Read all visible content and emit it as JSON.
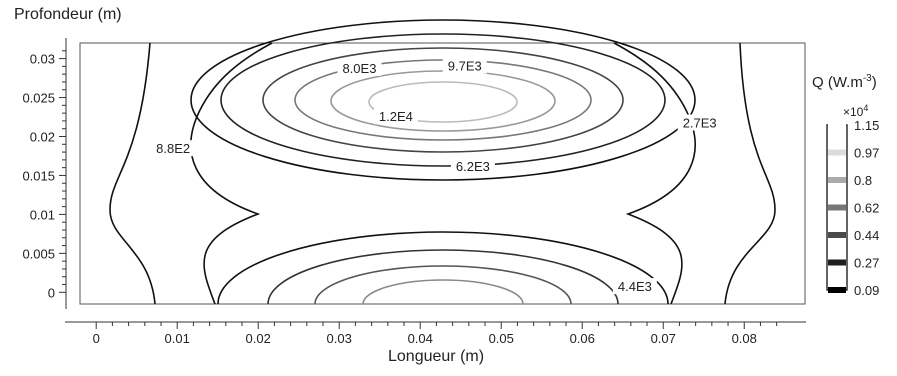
{
  "chart_data": {
    "type": "contour",
    "ylabel": "Profondeur (m)",
    "xlabel": "Longueur (m)",
    "xlim": [
      -0.002,
      0.0875
    ],
    "ylim": [
      -0.0015,
      0.032
    ],
    "x_ticks": [
      "0",
      "0.01",
      "0.02",
      "0.03",
      "0.04",
      "0.05",
      "0.06",
      "0.07",
      "0.08"
    ],
    "x_tick_values": [
      0,
      0.01,
      0.02,
      0.03,
      0.04,
      0.05,
      0.06,
      0.07,
      0.08
    ],
    "y_ticks": [
      "0",
      "0.005",
      "0.01",
      "0.015",
      "0.02",
      "0.025",
      "0.03"
    ],
    "y_tick_values": [
      0,
      0.005,
      0.01,
      0.015,
      0.02,
      0.025,
      0.03
    ],
    "contour_labels": [
      {
        "text": "8.0E3",
        "x": 0.0325,
        "y": 0.0288
      },
      {
        "text": "9.7E3",
        "x": 0.0455,
        "y": 0.0291
      },
      {
        "text": "1.2E4",
        "x": 0.037,
        "y": 0.0226
      },
      {
        "text": "2.7E3",
        "x": 0.0745,
        "y": 0.0218
      },
      {
        "text": "8.8E2",
        "x": 0.0095,
        "y": 0.0185
      },
      {
        "text": "6.2E3",
        "x": 0.0465,
        "y": 0.0162
      },
      {
        "text": "4.4E3",
        "x": 0.0665,
        "y": 0.0008
      }
    ],
    "colorbar": {
      "title": "Q (W.m-3)",
      "multiplier": "×10",
      "exponent": "4",
      "levels": [
        "1.15",
        "0.97",
        "0.8",
        "0.62",
        "0.44",
        "0.27",
        "0.09"
      ],
      "colors": [
        "#ffffff",
        "#dcdcdc",
        "#aaaaaa",
        "#777777",
        "#4a4a4a",
        "#1e1e1e",
        "#000000"
      ]
    },
    "grid": false,
    "legend": "right"
  }
}
